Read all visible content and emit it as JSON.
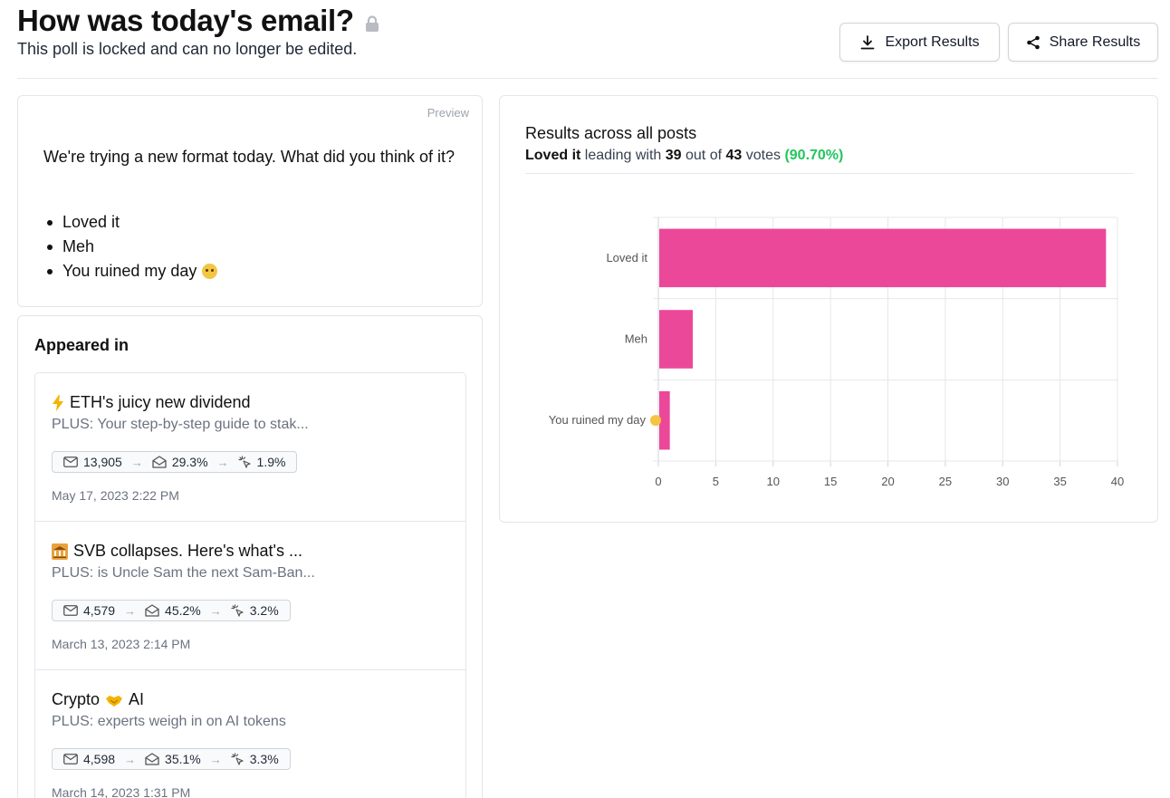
{
  "header": {
    "title": "How was today's email?",
    "subtitle": "This poll is locked and can no longer be edited.",
    "export_label": "Export Results",
    "share_label": "Share Results"
  },
  "preview": {
    "label": "Preview",
    "question": "We're trying a new format today. What did you think of it?",
    "options": [
      "Loved it",
      "Meh",
      "You ruined my day"
    ]
  },
  "appeared_in": {
    "title": "Appeared in",
    "posts": [
      {
        "icon": "lightning-icon",
        "title": "ETH's juicy new dividend",
        "subtitle": "PLUS: Your step-by-step guide to stak...",
        "recipients": "13,905",
        "open_rate": "29.3%",
        "click_rate": "1.9%",
        "date": "May 17, 2023 2:22 PM"
      },
      {
        "icon": "bank-icon",
        "title": "SVB collapses. Here's what's ...",
        "subtitle": "PLUS: is Uncle Sam the next Sam-Ban...",
        "recipients": "4,579",
        "open_rate": "45.2%",
        "click_rate": "3.2%",
        "date": "March 13, 2023 2:14 PM"
      },
      {
        "icon": "handshake-icon",
        "title_pre": "Crypto",
        "title_post": "AI",
        "subtitle": "PLUS: experts weigh in on AI tokens",
        "recipients": "4,598",
        "open_rate": "35.1%",
        "click_rate": "3.3%",
        "date": "March 14, 2023 1:31 PM"
      }
    ]
  },
  "results": {
    "title": "Results across all posts",
    "leader": "Loved it",
    "leading_with": "leading with",
    "votes_leading": "39",
    "out_of": "out of",
    "votes_total": "43",
    "votes_word": "votes",
    "percent": "(90.70%)"
  },
  "colors": {
    "bar": "#ec4899",
    "accent_green": "#22c55e"
  },
  "chart_data": {
    "type": "bar",
    "orientation": "horizontal",
    "categories": [
      "Loved it",
      "Meh",
      "You ruined my day"
    ],
    "values": [
      39,
      3,
      1
    ],
    "xlim": [
      0,
      40
    ],
    "xticks": [
      0,
      5,
      10,
      15,
      20,
      25,
      30,
      35,
      40
    ],
    "grid": true
  }
}
